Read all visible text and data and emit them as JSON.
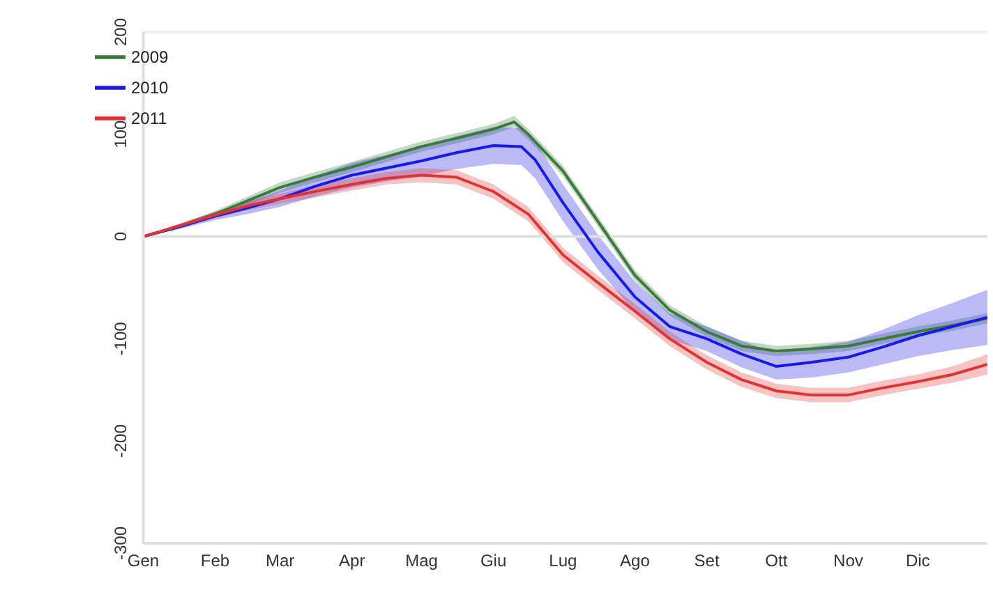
{
  "chart_data": {
    "type": "line",
    "xlim": [
      "--01-01",
      "--12-31"
    ],
    "xticks": [
      {
        "value": "--01-01",
        "label": "Gen"
      },
      {
        "value": "--02-01",
        "label": "Feb"
      },
      {
        "value": "--03-01",
        "label": "Mar"
      },
      {
        "value": "--04-01",
        "label": "Apr"
      },
      {
        "value": "--05-01",
        "label": "Mag"
      },
      {
        "value": "--06-01",
        "label": "Giu"
      },
      {
        "value": "--07-01",
        "label": "Lug"
      },
      {
        "value": "--08-01",
        "label": "Ago"
      },
      {
        "value": "--09-01",
        "label": "Set"
      },
      {
        "value": "--10-01",
        "label": "Ott"
      },
      {
        "value": "--11-01",
        "label": "Nov"
      },
      {
        "value": "--12-01",
        "label": "Dic"
      }
    ],
    "ylim": [
      -300,
      200
    ],
    "yticks": [
      -300,
      -200,
      -100,
      0,
      100,
      200
    ],
    "legend": "top left",
    "line_style": "solid",
    "ref_lines": [
      {
        "axis": "y",
        "value": 0,
        "color": "#e0e0e0"
      },
      {
        "axis": "y",
        "value": 200,
        "color": "#eeeeee"
      }
    ],
    "series": [
      {
        "name": "2009",
        "color": "#3c7a3c",
        "x": [
          "--01-01",
          "--01-16",
          "--02-01",
          "--02-15",
          "--03-01",
          "--03-16",
          "--04-01",
          "--04-16",
          "--05-01",
          "--05-16",
          "--06-01",
          "--06-10",
          "--06-16",
          "--07-01",
          "--07-16",
          "--08-01",
          "--08-16",
          "--09-01",
          "--09-16",
          "--10-01",
          "--10-16",
          "--11-01",
          "--11-16",
          "--12-01",
          "--12-16",
          "--12-31"
        ],
        "values": [
          0,
          10,
          22,
          35,
          48,
          58,
          68,
          78,
          88,
          96,
          105,
          112,
          100,
          64,
          15,
          -38,
          -72,
          -93,
          -107,
          -112,
          -110,
          -107,
          -100,
          -93,
          -87,
          -80
        ],
        "lower": [
          0,
          8,
          19,
          31,
          43,
          53,
          63,
          73,
          83,
          91,
          100,
          107,
          95,
          59,
          10,
          -43,
          -77,
          -98,
          -112,
          -117,
          -115,
          -112,
          -105,
          -98,
          -92,
          -85
        ],
        "upper": [
          0,
          12,
          25,
          39,
          53,
          63,
          73,
          83,
          93,
          101,
          110,
          118,
          105,
          69,
          20,
          -33,
          -67,
          -88,
          -102,
          -107,
          -105,
          -102,
          -95,
          -88,
          -82,
          -75
        ]
      },
      {
        "name": "2010",
        "color": "#1a1ae6",
        "x": [
          "--01-01",
          "--01-16",
          "--02-01",
          "--02-15",
          "--03-01",
          "--03-16",
          "--04-01",
          "--04-16",
          "--05-01",
          "--05-16",
          "--06-01",
          "--06-13",
          "--06-19",
          "--07-01",
          "--07-16",
          "--08-01",
          "--08-16",
          "--09-01",
          "--09-16",
          "--10-01",
          "--10-16",
          "--11-01",
          "--11-16",
          "--12-01",
          "--12-16",
          "--12-31"
        ],
        "values": [
          0,
          9,
          20,
          28,
          37,
          49,
          60,
          67,
          74,
          82,
          89,
          88,
          75,
          33,
          -15,
          -59,
          -88,
          -100,
          -115,
          -127,
          -123,
          -118,
          -108,
          -97,
          -88,
          -79
        ],
        "lower": [
          0,
          7,
          16,
          22,
          29,
          39,
          48,
          54,
          59,
          66,
          71,
          70,
          57,
          15,
          -32,
          -74,
          -101,
          -112,
          -128,
          -140,
          -138,
          -133,
          -125,
          -117,
          -111,
          -106
        ],
        "upper": [
          0,
          11,
          24,
          34,
          45,
          59,
          72,
          80,
          89,
          98,
          107,
          106,
          93,
          51,
          2,
          -44,
          -75,
          -88,
          -102,
          -114,
          -108,
          -103,
          -91,
          -77,
          -65,
          -52
        ]
      },
      {
        "name": "2011",
        "color": "#e03434",
        "x": [
          "--01-01",
          "--01-16",
          "--02-01",
          "--02-15",
          "--03-01",
          "--03-16",
          "--04-01",
          "--04-16",
          "--05-01",
          "--05-16",
          "--06-01",
          "--06-16",
          "--07-01",
          "--07-16",
          "--08-01",
          "--08-16",
          "--09-01",
          "--09-16",
          "--10-01",
          "--10-16",
          "--11-01",
          "--11-16",
          "--12-01",
          "--12-16",
          "--12-31"
        ],
        "values": [
          0,
          10,
          21,
          30,
          37,
          44,
          51,
          57,
          60,
          58,
          44,
          22,
          -18,
          -45,
          -73,
          -100,
          -123,
          -140,
          -151,
          -155,
          -155,
          -148,
          -142,
          -135,
          -125
        ],
        "lower": [
          0,
          8,
          18,
          26,
          32,
          38,
          45,
          51,
          53,
          51,
          37,
          15,
          -25,
          -52,
          -80,
          -107,
          -130,
          -147,
          -158,
          -162,
          -162,
          -155,
          -149,
          -143,
          -135
        ],
        "upper": [
          0,
          12,
          24,
          34,
          42,
          50,
          57,
          63,
          67,
          65,
          51,
          29,
          -11,
          -38,
          -66,
          -93,
          -116,
          -133,
          -144,
          -148,
          -148,
          -141,
          -135,
          -127,
          -115
        ]
      }
    ]
  }
}
